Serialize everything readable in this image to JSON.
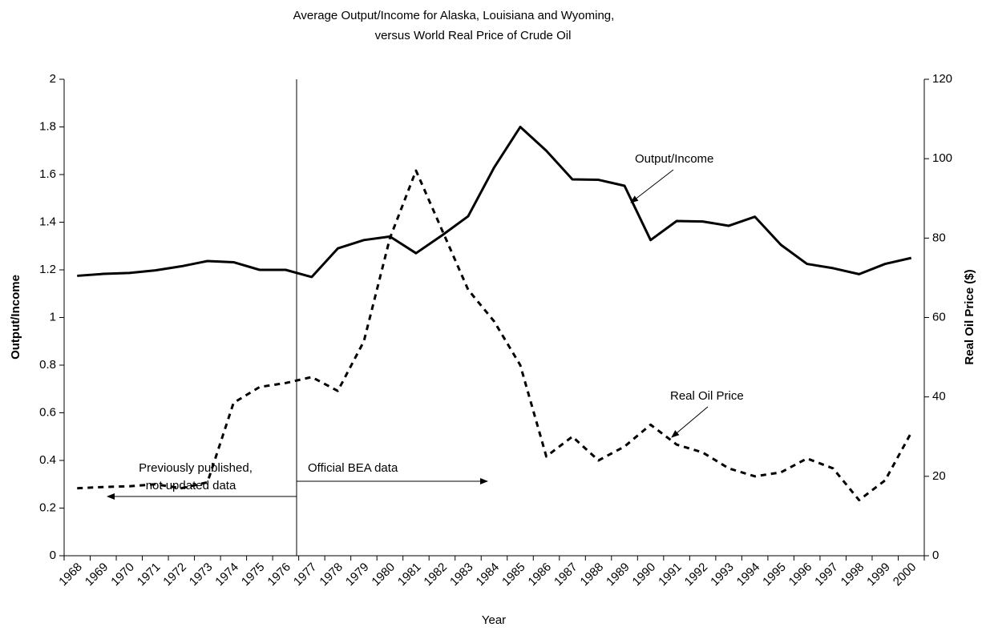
{
  "chart_data": {
    "type": "line",
    "title": [
      "Average Output/Income for Alaska, Louisiana and Wyoming,",
      "versus World Real Price of Crude Oil"
    ],
    "x_label": "Year",
    "y_label": "Output/Income",
    "y2_label": "Real Oil Price ($)",
    "categories": [
      "1968",
      "1969",
      "1970",
      "1971",
      "1972",
      "1973",
      "1974",
      "1975",
      "1976",
      "1977",
      "1978",
      "1979",
      "1980",
      "1981",
      "1982",
      "1983",
      "1984",
      "1985",
      "1986",
      "1987",
      "1988",
      "1989",
      "1990",
      "1991",
      "1992",
      "1993",
      "1994",
      "1995",
      "1996",
      "1997",
      "1998",
      "1999",
      "2000"
    ],
    "series": [
      {
        "name": "Output/Income",
        "color": "#000000",
        "line_style": "solid",
        "values": [
          1.175,
          1.183,
          1.187,
          1.198,
          1.215,
          1.237,
          1.232,
          1.2,
          1.2,
          1.17,
          1.29,
          1.325,
          1.34,
          1.27,
          1.345,
          1.425,
          1.63,
          1.8,
          1.7,
          1.58,
          1.578,
          1.553,
          1.325,
          1.405,
          1.403,
          1.385,
          1.423,
          1.305,
          1.225,
          1.207,
          1.182,
          1.225,
          1.25
        ]
      },
      {
        "name": "Real Oil Price",
        "color": "#000000",
        "line_style": "dashed",
        "axis": "y2",
        "values": [
          17,
          17.3,
          17.5,
          18,
          17,
          18.5,
          38.5,
          42.5,
          43.5,
          45,
          41.5,
          54,
          80,
          97,
          82,
          67,
          59,
          48,
          25,
          30,
          24,
          27.5,
          33,
          28,
          26,
          22,
          20,
          21,
          24.5,
          22,
          14,
          19,
          31
        ]
      }
    ],
    "ylim": [
      0,
      2
    ],
    "yticks": [
      0,
      0.2,
      0.4,
      0.6,
      0.8,
      1,
      1.2,
      1.4,
      1.6,
      1.8,
      2
    ],
    "y2lim": [
      0,
      120
    ],
    "y2ticks": [
      0,
      20,
      40,
      60,
      80,
      100,
      120
    ],
    "annotations": [
      [
        "Previously published,",
        "not updated data"
      ],
      "Official BEA data"
    ]
  }
}
